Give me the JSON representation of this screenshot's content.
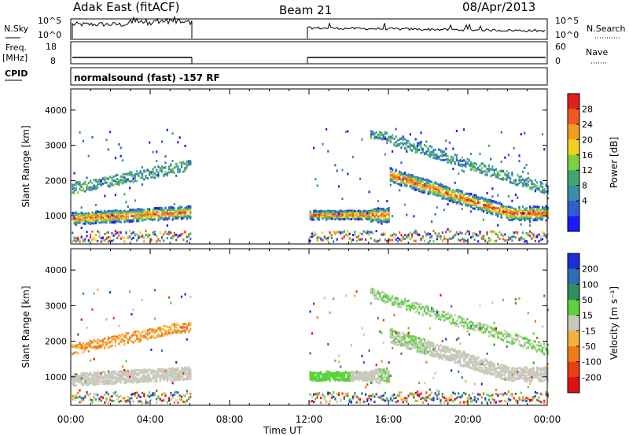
{
  "header": {
    "station": "Adak East (fitACF)",
    "beam": "Beam 21",
    "date": "08/Apr/2013",
    "mode": "normalsound (fast) -157 RF"
  },
  "panels": {
    "nsky_label": "N.Sky",
    "nsearch_label": "N.Search",
    "freq_label_1": "Freq.",
    "freq_label_2": "[MHz]",
    "nave_label": "Nave",
    "cpid_label": "CPID",
    "nsky_ticks": [
      "10^5",
      "10^0"
    ],
    "nsearch_ticks": [
      "10^5",
      "10^0"
    ],
    "freq_ticks": [
      "18",
      "8"
    ],
    "nave_ticks": [
      "60",
      "0"
    ]
  },
  "chart_data": [
    {
      "type": "heatmap",
      "name": "Power",
      "ylabel": "Slant Range [km]",
      "yticks": [
        1000,
        2000,
        3000,
        4000
      ],
      "ylim": [
        200,
        4600
      ],
      "xlim": [
        0,
        24
      ],
      "colorbar": {
        "label": "Power [dB]",
        "ticks": [
          4,
          8,
          12,
          16,
          20,
          24,
          28
        ],
        "colors": [
          "#1a1aff",
          "#2f5fd0",
          "#3a8fa8",
          "#3fa870",
          "#7fcf3f",
          "#f0d020",
          "#f59b22",
          "#f05a1e",
          "#e0201a"
        ]
      },
      "data_gaps": [
        [
          6,
          12
        ]
      ]
    },
    {
      "type": "heatmap",
      "name": "Velocity",
      "ylabel": "Slant Range [km]",
      "xlabel": "Time UT",
      "yticks": [
        1000,
        2000,
        3000,
        4000
      ],
      "ylim": [
        200,
        4600
      ],
      "xlim": [
        0,
        24
      ],
      "xticks": [
        "00:00",
        "04:00",
        "08:00",
        "12:00",
        "16:00",
        "20:00",
        "00:00"
      ],
      "colorbar": {
        "label": "Velocity [m s⁻¹]",
        "ticks": [
          200,
          100,
          50,
          15,
          -15,
          -50,
          -100,
          -200
        ],
        "colors": [
          "#1a2fd6",
          "#2d6fb0",
          "#2f8f5a",
          "#5bd23a",
          "#c8c8bc",
          "#f5b03a",
          "#f07a1a",
          "#e84010",
          "#e01010"
        ]
      },
      "data_gaps": [
        [
          6,
          12
        ]
      ]
    }
  ],
  "colors": {
    "frame": "#000000",
    "gray": "#c4c4b8"
  }
}
